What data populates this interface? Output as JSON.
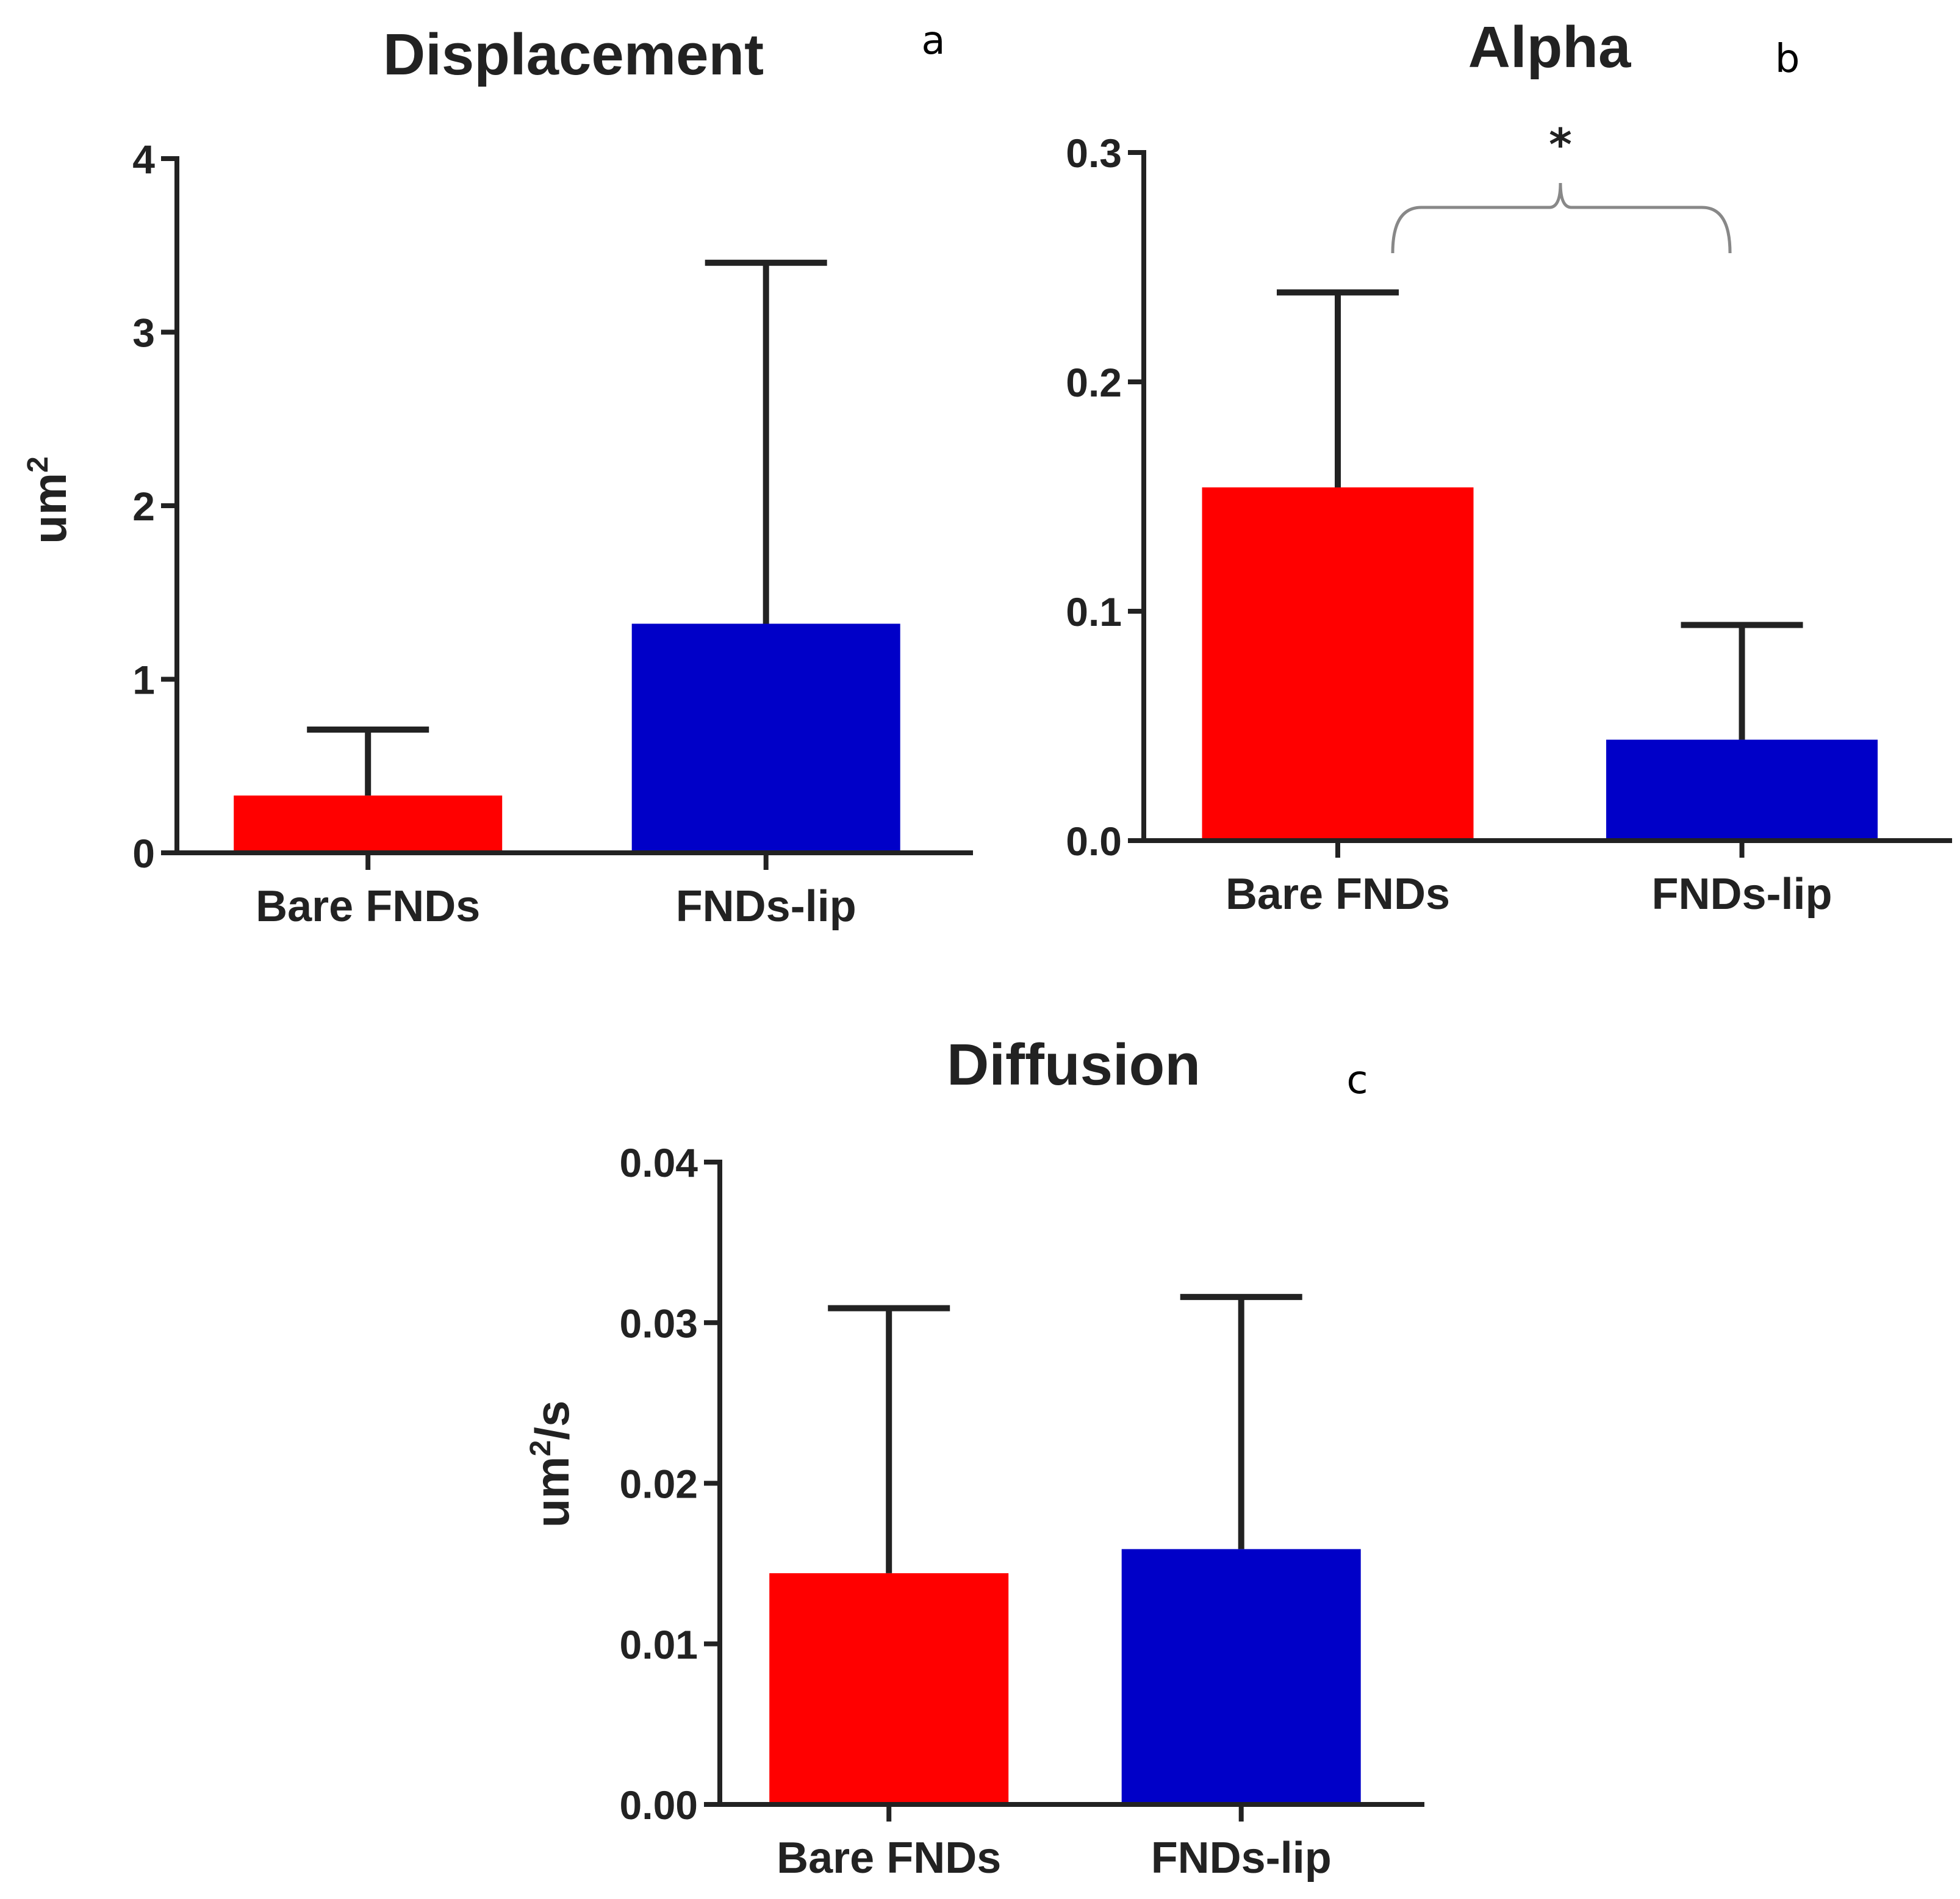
{
  "colors": {
    "red": "#ff0000",
    "blue": "#0000c8"
  },
  "chart_data": [
    {
      "id": "a",
      "type": "bar",
      "title": "Displacement",
      "panel_letter": "a",
      "ylabel": "um",
      "ylabel_sup": "2",
      "ylabel_suffix": "",
      "categories": [
        "Bare FNDs",
        "FNDs-lip"
      ],
      "values": [
        0.33,
        1.32
      ],
      "errors_upper": [
        0.71,
        3.4
      ],
      "bar_colors": [
        "#ff0000",
        "#0000c8"
      ],
      "ylim": [
        0,
        4
      ],
      "yticks": [
        0,
        1,
        2,
        3,
        4
      ],
      "ytick_labels": [
        "0",
        "1",
        "2",
        "3",
        "4"
      ]
    },
    {
      "id": "b",
      "type": "bar",
      "title": "Alpha",
      "panel_letter": "b",
      "ylabel": "",
      "ylabel_sup": "",
      "ylabel_suffix": "",
      "categories": [
        "Bare FNDs",
        "FNDs-lip"
      ],
      "values": [
        0.154,
        0.044
      ],
      "errors_upper": [
        0.239,
        0.094
      ],
      "bar_colors": [
        "#ff0000",
        "#0000c8"
      ],
      "ylim": [
        0,
        0.3
      ],
      "yticks": [
        0,
        0.1,
        0.2,
        0.3
      ],
      "ytick_labels": [
        "0.0",
        "0.1",
        "0.2",
        "0.3"
      ],
      "significance": "*"
    },
    {
      "id": "c",
      "type": "bar",
      "title": "Diffusion",
      "panel_letter": "c",
      "ylabel": "um",
      "ylabel_sup": "2",
      "ylabel_suffix": "/s",
      "categories": [
        "Bare FNDs",
        "FNDs-lip"
      ],
      "values": [
        0.0144,
        0.0159
      ],
      "errors_upper": [
        0.0309,
        0.0316
      ],
      "bar_colors": [
        "#ff0000",
        "#0000c8"
      ],
      "ylim": [
        0,
        0.04
      ],
      "yticks": [
        0,
        0.01,
        0.02,
        0.03,
        0.04
      ],
      "ytick_labels": [
        "0.00",
        "0.01",
        "0.02",
        "0.03",
        "0.04"
      ]
    }
  ]
}
